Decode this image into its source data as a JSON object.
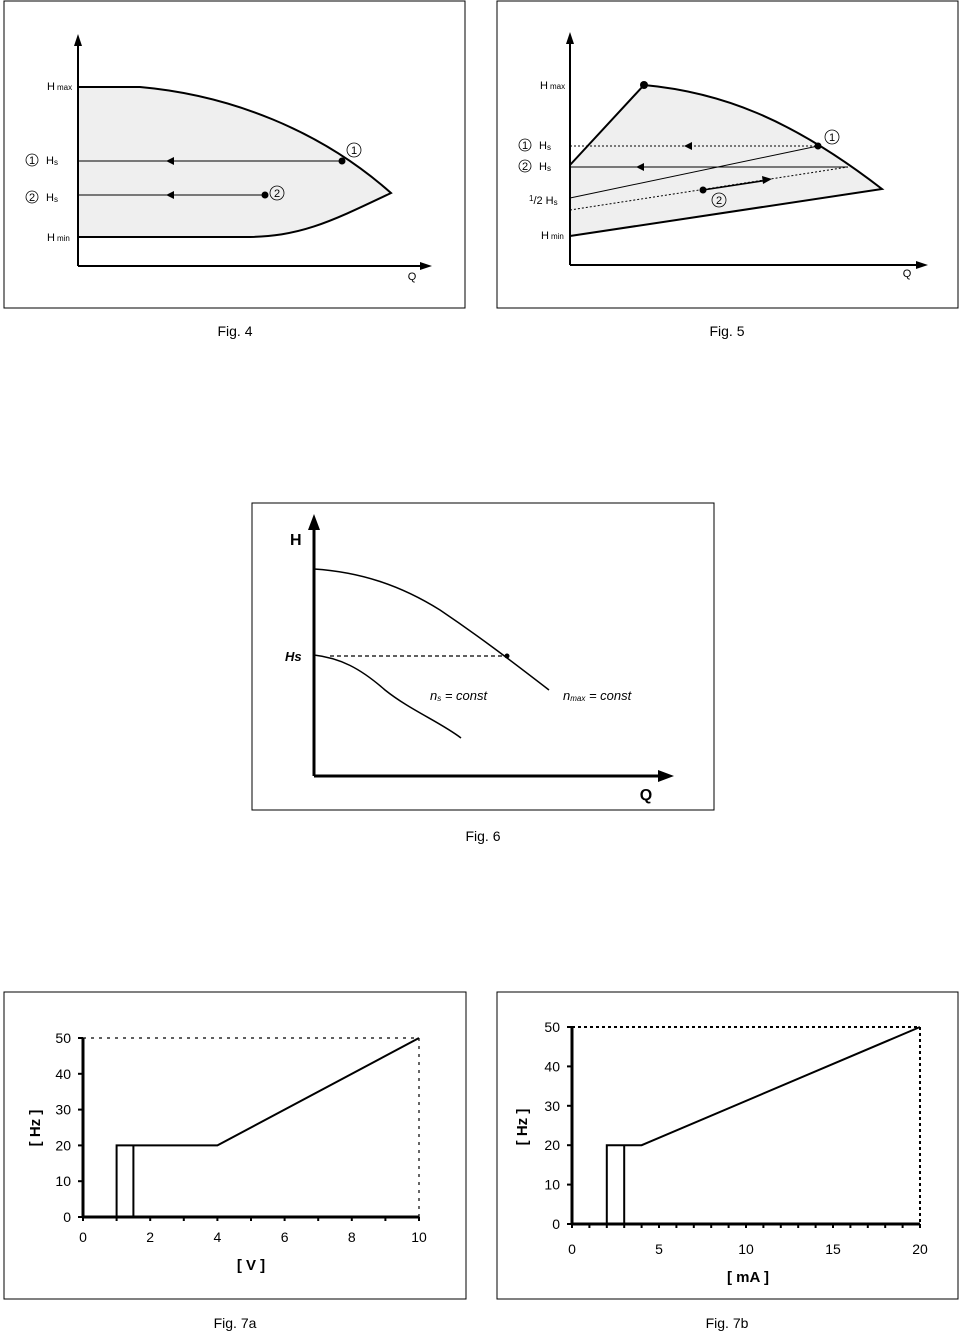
{
  "fig4": {
    "caption": "Fig. 4",
    "h_max": "H",
    "h_max_sub": "max",
    "hs1_num": "1",
    "hs1_label": "H",
    "hs1_sub": "s",
    "hs2_num": "2",
    "hs2_label": "H",
    "hs2_sub": "s",
    "h_min": "H",
    "h_min_sub": "min",
    "point1": "1",
    "point2": "2",
    "x_axis": "Q"
  },
  "fig5": {
    "caption": "Fig. 5",
    "h_max": "H",
    "h_max_sub": "max",
    "hs1_num": "1",
    "hs1_label": "H",
    "hs1_sub": "s",
    "hs2_num": "2",
    "hs2_label": "H",
    "hs2_sub": "s",
    "half_num": "1",
    "half_den": "/2",
    "half_label": "H",
    "half_sub": "s",
    "h_min": "H",
    "h_min_sub": "min",
    "point1": "1",
    "point2": "2",
    "x_axis": "Q"
  },
  "fig6": {
    "caption": "Fig. 6",
    "y_axis": "H",
    "hs": "Hs",
    "ns_label": "n",
    "ns_sub": "s",
    "ns_const": " = const",
    "nmax_label": "n",
    "nmax_sub": "max",
    "nmax_const": " = const",
    "x_axis": "Q"
  },
  "chart_data": [
    {
      "id": "fig7a",
      "type": "line",
      "caption": "Fig. 7a",
      "xlabel": "[ V ]",
      "ylabel": "[ Hz ]",
      "xlim": [
        0,
        10
      ],
      "ylim": [
        0,
        50
      ],
      "xticks": [
        "0",
        "2",
        "4",
        "6",
        "8",
        "10"
      ],
      "yticks": [
        "0",
        "10",
        "20",
        "30",
        "40",
        "50"
      ],
      "series": [
        {
          "x": [
            1,
            1,
            1.5,
            1.5,
            1.5,
            4,
            10
          ],
          "y": [
            0,
            20,
            20,
            0,
            20,
            20,
            50
          ]
        }
      ],
      "reference_max": 50
    },
    {
      "id": "fig7b",
      "type": "line",
      "caption": "Fig. 7b",
      "xlabel": "[ mA ]",
      "ylabel": "[ Hz ]",
      "xlim": [
        0,
        20
      ],
      "ylim": [
        0,
        50
      ],
      "xticks": [
        "0",
        "5",
        "10",
        "15",
        "20"
      ],
      "yticks": [
        "0",
        "10",
        "20",
        "30",
        "40",
        "50"
      ],
      "series": [
        {
          "x": [
            2,
            2,
            3,
            3,
            3,
            4,
            20
          ],
          "y": [
            0,
            20,
            20,
            0,
            20,
            20,
            50
          ]
        }
      ],
      "reference_max": 50
    }
  ]
}
